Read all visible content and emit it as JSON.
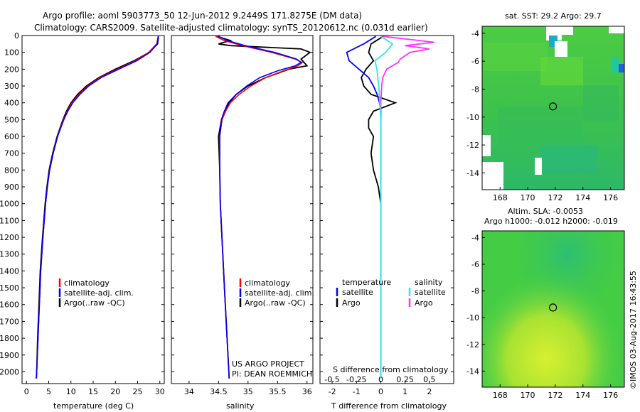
{
  "header": {
    "line1": "Argo profile: aoml 5903773_50 12-Jun-2012 9.2449S 171.8275E (DM data)",
    "line2": "Climatology: CARS2009. Satellite-adjusted climatology: synTS_20120612.nc (0.031d earlier)"
  },
  "colors": {
    "climatology": "#ff0000",
    "satellite": "#0000ff",
    "argo": "#000000",
    "salinity_sat": "#33e6e6",
    "salinity_argo": "#ff33ff"
  },
  "chart_data": [
    {
      "type": "line",
      "panel": "temperature",
      "xlabel": "temperature (deg C)",
      "ylabel": "",
      "xlim": [
        -1,
        31
      ],
      "ylim": [
        2070,
        0
      ],
      "xticks": [
        0,
        5,
        10,
        15,
        20,
        25,
        30
      ],
      "xtick_labels": [
        "0",
        "5",
        "10",
        "15",
        "20",
        "25",
        "30"
      ],
      "yticks": [
        0,
        100,
        200,
        300,
        400,
        500,
        600,
        700,
        800,
        900,
        1000,
        1100,
        1200,
        1300,
        1400,
        1500,
        1600,
        1700,
        1800,
        1900,
        2000
      ],
      "ytick_labels": [
        "0",
        "100",
        "200",
        "300",
        "400",
        "500",
        "600",
        "700",
        "800",
        "900",
        "1000",
        "1100",
        "1200",
        "1300",
        "1400",
        "1500",
        "1600",
        "1700",
        "1800",
        "1900",
        "2000"
      ],
      "legend": [
        "climatology",
        "satellite-adj. clim.",
        "Argo(..raw -QC)"
      ],
      "series": [
        {
          "name": "climatology",
          "depth": [
            5,
            50,
            100,
            150,
            200,
            250,
            300,
            350,
            400,
            450,
            500,
            600,
            700,
            800,
            900,
            1000,
            1200,
            1400,
            1600,
            1800,
            2000,
            2040
          ],
          "values": [
            29.6,
            29.3,
            27.5,
            24.5,
            20.5,
            16.5,
            13.8,
            11.8,
            10.2,
            9.2,
            8.3,
            7.0,
            6.0,
            5.2,
            4.7,
            4.3,
            3.7,
            3.2,
            2.9,
            2.6,
            2.3,
            2.25
          ]
        },
        {
          "name": "satellite-adj. clim.",
          "depth": [
            5,
            50,
            100,
            150,
            200,
            250,
            300,
            350,
            400,
            450,
            500,
            600,
            700,
            800,
            900,
            1000,
            1200,
            1400,
            1600,
            1800,
            2000,
            2040
          ],
          "values": [
            29.7,
            29.4,
            27.8,
            24.8,
            20.8,
            16.8,
            14.0,
            12.0,
            10.4,
            9.3,
            8.4,
            7.0,
            6.0,
            5.2,
            4.7,
            4.3,
            3.7,
            3.2,
            2.9,
            2.6,
            2.3,
            2.25
          ]
        },
        {
          "name": "Argo(..raw -QC)",
          "depth": [
            5,
            50,
            100,
            150,
            200,
            250,
            300,
            350,
            400,
            450,
            500,
            600,
            700,
            800,
            900,
            1000,
            1200,
            1400,
            1600,
            1800,
            2000,
            2040
          ],
          "values": [
            29.7,
            29.5,
            27.6,
            24.2,
            20.0,
            16.3,
            13.5,
            11.5,
            10.0,
            9.0,
            8.2,
            6.9,
            5.9,
            5.1,
            4.6,
            4.2,
            3.6,
            3.1,
            2.8,
            2.5,
            2.3,
            2.2
          ]
        }
      ]
    },
    {
      "type": "line",
      "panel": "salinity",
      "xlabel": "salinity",
      "xlim": [
        33.7,
        36.1
      ],
      "ylim": [
        2070,
        0
      ],
      "xticks": [
        34,
        34.5,
        35,
        35.5,
        36
      ],
      "xtick_labels": [
        "34",
        "34.5",
        "35",
        "35.5",
        "36"
      ],
      "legend": [
        "climatology",
        "satellite-adj. clim.",
        "Argo(..raw -QC)"
      ],
      "annotations": [
        "US ARGO PROJECT",
        "PI: DEAN ROEMMICH"
      ],
      "series": [
        {
          "name": "climatology",
          "depth": [
            5,
            30,
            60,
            100,
            140,
            160,
            180,
            210,
            250,
            300,
            350,
            400,
            450,
            500,
            600,
            800,
            1000,
            1500,
            2040
          ],
          "values": [
            34.45,
            34.6,
            34.9,
            35.4,
            35.8,
            35.92,
            35.85,
            35.6,
            35.3,
            35.05,
            34.85,
            34.7,
            34.62,
            34.56,
            34.52,
            34.52,
            34.53,
            34.6,
            34.68
          ]
        },
        {
          "name": "satellite-adj. clim.",
          "depth": [
            5,
            30,
            60,
            100,
            140,
            160,
            180,
            210,
            250,
            300,
            350,
            400,
            450,
            500,
            600,
            800,
            1000,
            1500,
            2040
          ],
          "values": [
            34.5,
            34.65,
            34.95,
            35.45,
            35.82,
            35.9,
            35.8,
            35.5,
            35.2,
            34.98,
            34.8,
            34.66,
            34.6,
            34.55,
            34.52,
            34.52,
            34.53,
            34.6,
            34.68
          ]
        },
        {
          "name": "Argo(..raw -QC)",
          "depth": [
            5,
            30,
            50,
            60,
            80,
            100,
            140,
            160,
            180,
            200,
            250,
            300,
            350,
            400,
            450,
            500,
            600,
            800,
            1000,
            1500,
            2040
          ],
          "values": [
            34.48,
            34.7,
            34.5,
            34.7,
            35.9,
            36.05,
            35.9,
            35.95,
            36.0,
            35.7,
            35.3,
            35.0,
            34.8,
            34.68,
            34.6,
            34.55,
            34.5,
            34.52,
            34.53,
            34.6,
            34.68
          ]
        }
      ]
    },
    {
      "type": "line",
      "panel": "difference",
      "xlabel": "T difference from climatology",
      "xlabel_top": "S difference from climatology",
      "xlim": [
        -2.5,
        3.0
      ],
      "ylim": [
        2070,
        0
      ],
      "xticks": [
        -2,
        -1,
        0,
        1,
        2
      ],
      "xtick_labels": [
        "-2",
        "-1",
        "0",
        "1",
        "2"
      ],
      "sticks": [
        -0.5,
        -0.25,
        0,
        0.25,
        0.5
      ],
      "stick_labels": [
        "-0.5",
        "-0.25",
        "0",
        "0.25",
        "0.5"
      ],
      "legend_t": {
        "title": "temperature",
        "items": [
          "satellite",
          "Argo"
        ]
      },
      "legend_s": {
        "title": "salinity",
        "items": [
          "satellite",
          "Argo"
        ]
      },
      "series": [
        {
          "name": "T satellite",
          "depth": [
            5,
            50,
            100,
            150,
            200,
            250,
            300,
            350,
            400,
            450,
            500,
            600,
            800,
            1000,
            1500,
            2040
          ],
          "values": [
            -0.2,
            -0.7,
            -1.4,
            -1.3,
            -0.9,
            -0.5,
            -0.3,
            -0.15,
            -0.05,
            0.0,
            0.0,
            0.0,
            0.0,
            0.0,
            0.0,
            0.0
          ]
        },
        {
          "name": "T Argo",
          "depth": [
            5,
            50,
            100,
            150,
            200,
            250,
            300,
            350,
            400,
            450,
            500,
            550,
            600,
            700,
            800,
            900,
            1000,
            1500,
            2040
          ],
          "values": [
            0.1,
            -0.4,
            -0.5,
            -0.3,
            -0.6,
            -0.8,
            -0.7,
            -0.4,
            0.6,
            -0.3,
            -0.5,
            -0.5,
            -0.3,
            -0.4,
            -0.3,
            -0.1,
            0.0,
            0.0,
            0.0
          ]
        },
        {
          "name": "S satellite",
          "depth": [
            5,
            50,
            100,
            150,
            200,
            300,
            400,
            500,
            600,
            1000,
            1500,
            2040
          ],
          "values": [
            0.0,
            0.12,
            0.05,
            -0.06,
            -0.04,
            -0.02,
            -0.01,
            0.0,
            0.0,
            0.0,
            0.0,
            0.0
          ]
        },
        {
          "name": "S Argo",
          "depth": [
            5,
            40,
            60,
            80,
            100,
            140,
            160,
            200,
            250,
            300,
            400,
            500,
            1000,
            2040
          ],
          "values": [
            0.02,
            0.55,
            0.25,
            0.5,
            0.3,
            0.2,
            0.18,
            0.06,
            0.02,
            0.01,
            0.0,
            0.0,
            0.0,
            0.0
          ]
        }
      ]
    },
    {
      "type": "heatmap",
      "panel": "sst-map",
      "title": "sat. SST: 29.2  Argo: 29.7",
      "xticks": [
        168,
        170,
        172,
        174,
        176
      ],
      "xtick_labels": [
        "168",
        "170",
        "172",
        "174",
        "176"
      ],
      "yticks": [
        -4,
        -6,
        -8,
        -10,
        -12,
        -14
      ],
      "ytick_labels": [
        "-4",
        "-6",
        "-8",
        "-10",
        "-12",
        "-14"
      ],
      "xlim": [
        166.7,
        177.0
      ],
      "ylim": [
        -15.2,
        -3.5
      ],
      "marker": [
        171.83,
        -9.24
      ]
    },
    {
      "type": "heatmap",
      "panel": "sla-map",
      "title": "Altim. SLA: -0.0053",
      "subtitle": "Argo h1000: -0.012  h2000: -0.019",
      "xticks": [
        168,
        170,
        172,
        174,
        176
      ],
      "xtick_labels": [
        "168",
        "170",
        "172",
        "174",
        "176"
      ],
      "yticks": [
        -4,
        -6,
        -8,
        -10,
        -12,
        -14
      ],
      "ytick_labels": [
        "-4",
        "-6",
        "-8",
        "-10",
        "-12",
        "-14"
      ],
      "xlim": [
        166.7,
        177.0
      ],
      "ylim": [
        -15.2,
        -3.5
      ],
      "marker": [
        171.83,
        -9.24
      ]
    }
  ],
  "footer": {
    "stamp": "©IMOS 03-Aug-2017 16:43:55"
  }
}
